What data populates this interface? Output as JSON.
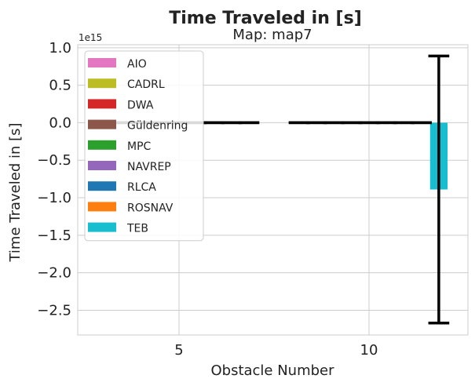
{
  "chart_data": {
    "type": "bar",
    "suptitle": "Time Traveled in [s]",
    "title": "Map: map7",
    "xlabel": "Obstacle Number",
    "ylabel": "Time Traveled in [s]",
    "offset_label": "1e15",
    "categories": [
      "5",
      "10"
    ],
    "y_scale": 1000000000000000.0,
    "ylim": [
      -2.83,
      1.04
    ],
    "yticks": [
      1.0,
      0.5,
      0.0,
      -0.5,
      -1.0,
      -1.5,
      -2.0,
      -2.5
    ],
    "ytick_labels": [
      "1.0",
      "0.5",
      "0.0",
      "−0.5",
      "−1.0",
      "−1.5",
      "−2.0",
      "−2.5"
    ],
    "grid": true,
    "legend_position": "upper-left",
    "series": [
      {
        "name": "AIO",
        "color": "#e377c2",
        "values": [
          0,
          0
        ],
        "errors": [
          0,
          0
        ]
      },
      {
        "name": "CADRL",
        "color": "#bcbd22",
        "values": [
          0,
          0
        ],
        "errors": [
          0,
          0
        ]
      },
      {
        "name": "DWA",
        "color": "#d62728",
        "values": [
          0,
          0
        ],
        "errors": [
          0,
          0
        ]
      },
      {
        "name": "Güldenring",
        "color": "#8c564b",
        "values": [
          0,
          0
        ],
        "errors": [
          0,
          0
        ]
      },
      {
        "name": "MPC",
        "color": "#2ca02c",
        "values": [
          0,
          0
        ],
        "errors": [
          0,
          0
        ]
      },
      {
        "name": "NAVREP",
        "color": "#9467bd",
        "values": [
          0,
          0
        ],
        "errors": [
          0,
          0
        ]
      },
      {
        "name": "RLCA",
        "color": "#1f77b4",
        "values": [
          0,
          0
        ],
        "errors": [
          0,
          0
        ]
      },
      {
        "name": "ROSNAV",
        "color": "#ff7f0e",
        "values": [
          0,
          0
        ],
        "errors": [
          0,
          0
        ]
      },
      {
        "name": "TEB",
        "color": "#17becf",
        "values": [
          0,
          -0.89
        ],
        "errors": [
          0,
          1.78
        ]
      }
    ]
  }
}
